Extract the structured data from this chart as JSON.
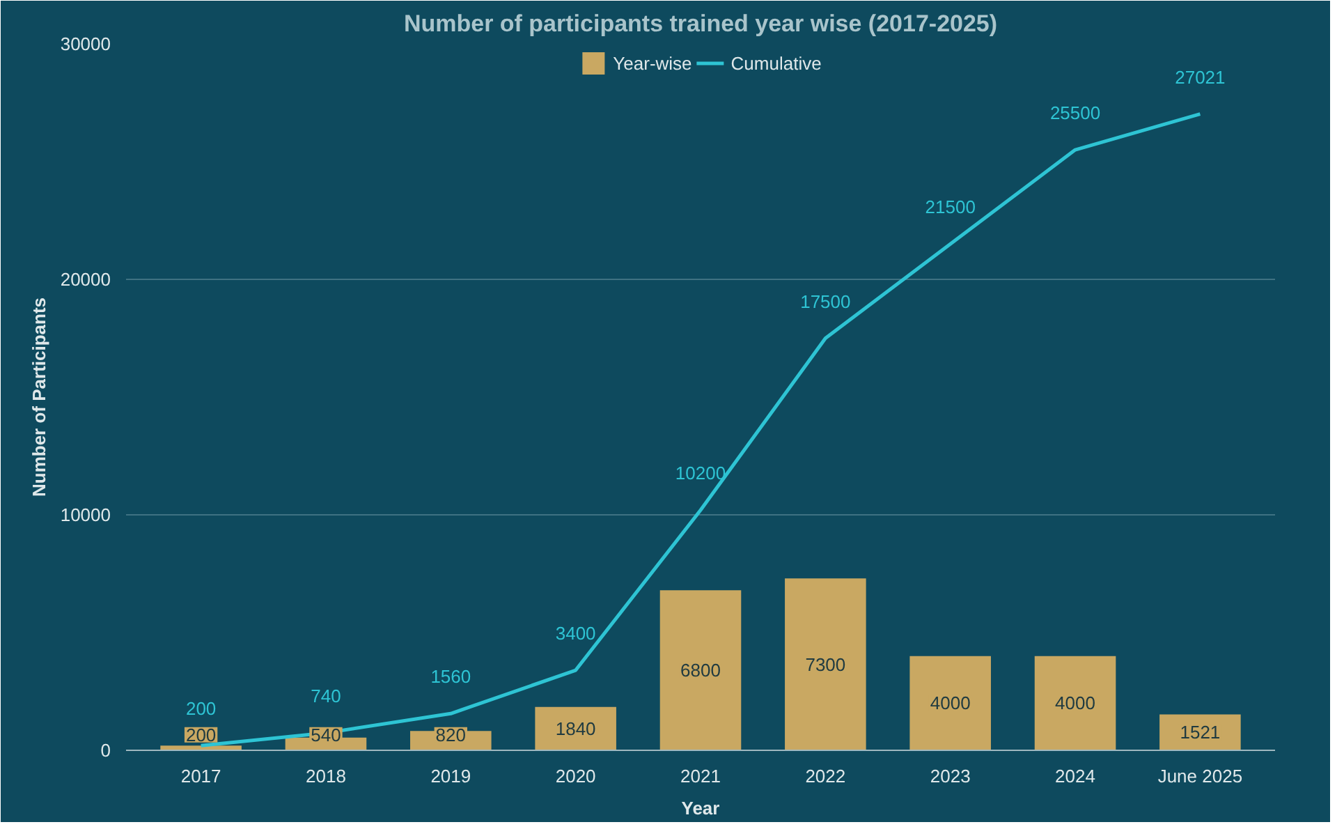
{
  "chart_data": {
    "type": "bar",
    "title": "Number of participants trained year wise (2017-2025)",
    "xlabel": "Year",
    "ylabel": "Number of Participants",
    "categories": [
      "2017",
      "2018",
      "2019",
      "2020",
      "2021",
      "2022",
      "2023",
      "2024",
      "June 2025"
    ],
    "series": [
      {
        "name": "Year-wise",
        "color": "#c9a862",
        "values": [
          200,
          540,
          820,
          1840,
          6800,
          7300,
          4000,
          4000,
          1521
        ]
      },
      {
        "name": "Cumulative",
        "type": "line",
        "color": "#2ec4d4",
        "values": [
          200,
          740,
          1560,
          3400,
          10200,
          17500,
          21500,
          25500,
          27021
        ]
      }
    ],
    "ylim": [
      0,
      30000
    ],
    "yticks": [
      0,
      10000,
      20000,
      30000
    ],
    "grid": "y",
    "legend": "top",
    "data_labels": true,
    "marker": "none"
  }
}
